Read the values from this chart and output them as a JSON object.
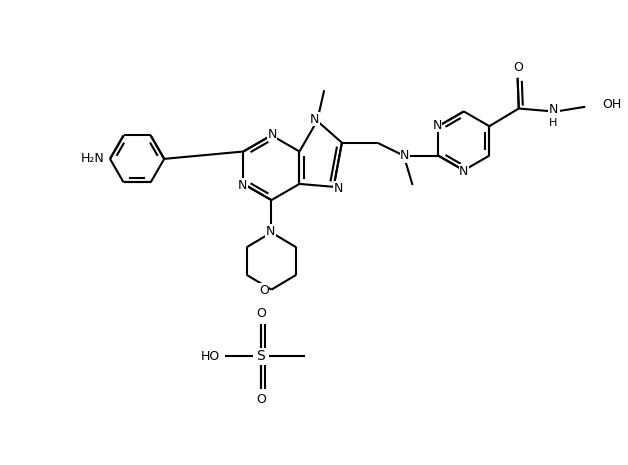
{
  "bg": "#ffffff",
  "lc": "#000000",
  "lw": 1.5,
  "fs": 9,
  "figw": 6.28,
  "figh": 4.65,
  "dpi": 100,
  "xlim": [
    0,
    10
  ],
  "ylim": [
    0,
    7.8
  ]
}
